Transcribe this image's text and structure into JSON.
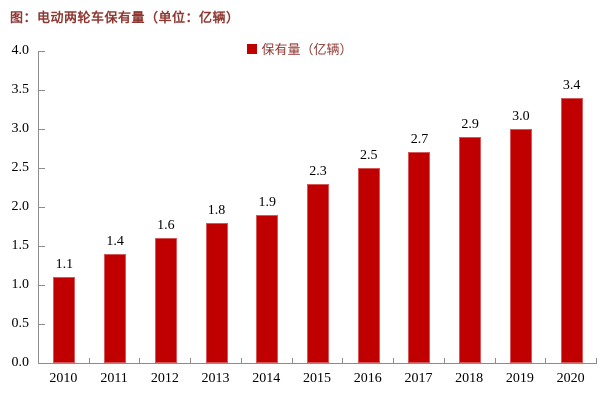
{
  "title": "图：电动两轮车保有量（单位：亿辆）",
  "legend": {
    "label": "保有量（亿辆）",
    "swatch_color": "#C00000"
  },
  "colors": {
    "bar": "#C00000",
    "title_text": "#8F3832",
    "legend_text": "#8F3832",
    "axis_line": "#8C8C8C",
    "text": "#000000",
    "background": "#FFFFFF"
  },
  "chart_data": {
    "type": "bar",
    "title": "图：电动两轮车保有量（单位：亿辆）",
    "series_name": "保有量（亿辆）",
    "categories": [
      "2010",
      "2011",
      "2012",
      "2013",
      "2014",
      "2015",
      "2016",
      "2017",
      "2018",
      "2019",
      "2020"
    ],
    "values": [
      1.1,
      1.4,
      1.6,
      1.8,
      1.9,
      2.3,
      2.5,
      2.7,
      2.9,
      3.0,
      3.4
    ],
    "value_labels": [
      "1.1",
      "1.4",
      "1.6",
      "1.8",
      "1.9",
      "2.3",
      "2.5",
      "2.7",
      "2.9",
      "3.0",
      "3.4"
    ],
    "xlabel": "",
    "ylabel": "",
    "ylim": [
      0.0,
      4.0
    ],
    "ytick_step": 0.5,
    "ytick_labels": [
      "0.0",
      "0.5",
      "1.0",
      "1.5",
      "2.0",
      "2.5",
      "3.0",
      "3.5",
      "4.0"
    ],
    "grid": false,
    "legend_position": "top-center",
    "bar_color": "#C00000"
  }
}
